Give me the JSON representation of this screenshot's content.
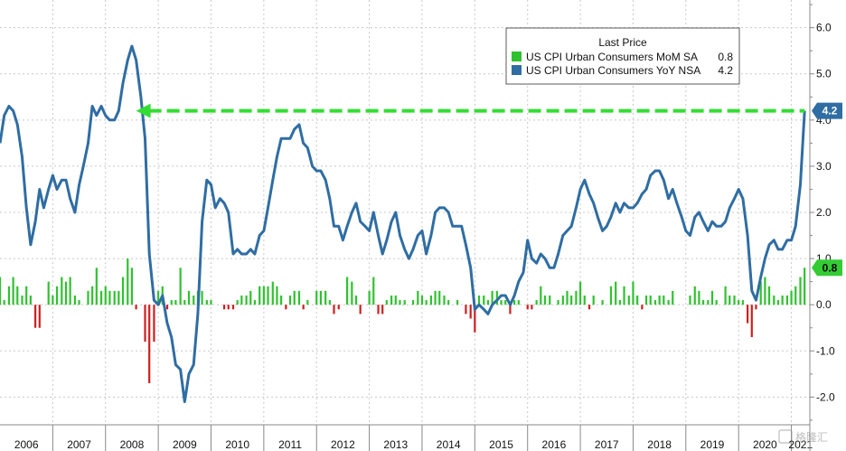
{
  "chart_data": {
    "type": "line+bar",
    "legend": {
      "title": "Last Price",
      "entries": [
        {
          "label": "US CPI Urban Consumers MoM SA",
          "last": "0.8",
          "color": "#2fc12f"
        },
        {
          "label": "US CPI Urban Consumers YoY NSA",
          "last": "4.2",
          "color": "#2f6da3"
        }
      ]
    },
    "x_ticks": [
      "2006",
      "2007",
      "2008",
      "2009",
      "2010",
      "2011",
      "2012",
      "2013",
      "2014",
      "2015",
      "2016",
      "2017",
      "2018",
      "2019",
      "2020",
      "2021"
    ],
    "y_ticks": [
      "6.0",
      "5.0",
      "4.0",
      "3.0",
      "2.0",
      "1.0",
      "0.0",
      "-1.0",
      "-2.0"
    ],
    "ylim": [
      -2.6,
      6.6
    ],
    "xlim": [
      2006.0,
      2021.35
    ],
    "yoy": [
      [
        2006.0,
        3.5
      ],
      [
        2006.08,
        4.1
      ],
      [
        2006.17,
        4.3
      ],
      [
        2006.25,
        4.2
      ],
      [
        2006.33,
        3.9
      ],
      [
        2006.42,
        3.2
      ],
      [
        2006.5,
        2.1
      ],
      [
        2006.58,
        1.3
      ],
      [
        2006.67,
        1.8
      ],
      [
        2006.75,
        2.5
      ],
      [
        2006.83,
        2.1
      ],
      [
        2006.92,
        2.5
      ],
      [
        2007.0,
        2.8
      ],
      [
        2007.08,
        2.5
      ],
      [
        2007.17,
        2.7
      ],
      [
        2007.25,
        2.7
      ],
      [
        2007.33,
        2.3
      ],
      [
        2007.42,
        2.0
      ],
      [
        2007.5,
        2.6
      ],
      [
        2007.58,
        3.0
      ],
      [
        2007.67,
        3.5
      ],
      [
        2007.75,
        4.3
      ],
      [
        2007.83,
        4.1
      ],
      [
        2007.92,
        4.3
      ],
      [
        2008.0,
        4.1
      ],
      [
        2008.08,
        4.0
      ],
      [
        2008.17,
        4.0
      ],
      [
        2008.25,
        4.2
      ],
      [
        2008.33,
        4.8
      ],
      [
        2008.42,
        5.3
      ],
      [
        2008.5,
        5.6
      ],
      [
        2008.58,
        5.3
      ],
      [
        2008.67,
        4.5
      ],
      [
        2008.75,
        3.6
      ],
      [
        2008.83,
        1.1
      ],
      [
        2008.92,
        0.1
      ],
      [
        2009.0,
        0.0
      ],
      [
        2009.08,
        0.2
      ],
      [
        2009.17,
        -0.4
      ],
      [
        2009.25,
        -0.7
      ],
      [
        2009.33,
        -1.3
      ],
      [
        2009.42,
        -1.4
      ],
      [
        2009.5,
        -2.1
      ],
      [
        2009.58,
        -1.5
      ],
      [
        2009.67,
        -1.3
      ],
      [
        2009.75,
        -0.2
      ],
      [
        2009.83,
        1.8
      ],
      [
        2009.92,
        2.7
      ],
      [
        2010.0,
        2.6
      ],
      [
        2010.08,
        2.1
      ],
      [
        2010.17,
        2.3
      ],
      [
        2010.25,
        2.2
      ],
      [
        2010.33,
        2.0
      ],
      [
        2010.42,
        1.1
      ],
      [
        2010.5,
        1.2
      ],
      [
        2010.58,
        1.1
      ],
      [
        2010.67,
        1.1
      ],
      [
        2010.75,
        1.2
      ],
      [
        2010.83,
        1.1
      ],
      [
        2010.92,
        1.5
      ],
      [
        2011.0,
        1.6
      ],
      [
        2011.08,
        2.1
      ],
      [
        2011.17,
        2.7
      ],
      [
        2011.25,
        3.2
      ],
      [
        2011.33,
        3.6
      ],
      [
        2011.42,
        3.6
      ],
      [
        2011.5,
        3.6
      ],
      [
        2011.58,
        3.8
      ],
      [
        2011.67,
        3.9
      ],
      [
        2011.75,
        3.5
      ],
      [
        2011.83,
        3.4
      ],
      [
        2011.92,
        3.0
      ],
      [
        2012.0,
        2.9
      ],
      [
        2012.08,
        2.9
      ],
      [
        2012.17,
        2.7
      ],
      [
        2012.25,
        2.3
      ],
      [
        2012.33,
        1.7
      ],
      [
        2012.42,
        1.7
      ],
      [
        2012.5,
        1.4
      ],
      [
        2012.58,
        1.7
      ],
      [
        2012.67,
        2.0
      ],
      [
        2012.75,
        2.2
      ],
      [
        2012.83,
        1.8
      ],
      [
        2012.92,
        1.7
      ],
      [
        2013.0,
        1.6
      ],
      [
        2013.08,
        2.0
      ],
      [
        2013.17,
        1.5
      ],
      [
        2013.25,
        1.1
      ],
      [
        2013.33,
        1.4
      ],
      [
        2013.42,
        1.8
      ],
      [
        2013.5,
        2.0
      ],
      [
        2013.58,
        1.5
      ],
      [
        2013.67,
        1.2
      ],
      [
        2013.75,
        1.0
      ],
      [
        2013.83,
        1.2
      ],
      [
        2013.92,
        1.5
      ],
      [
        2014.0,
        1.6
      ],
      [
        2014.08,
        1.1
      ],
      [
        2014.17,
        1.5
      ],
      [
        2014.25,
        2.0
      ],
      [
        2014.33,
        2.1
      ],
      [
        2014.42,
        2.1
      ],
      [
        2014.5,
        2.0
      ],
      [
        2014.58,
        1.7
      ],
      [
        2014.67,
        1.7
      ],
      [
        2014.75,
        1.7
      ],
      [
        2014.83,
        1.3
      ],
      [
        2014.92,
        0.8
      ],
      [
        2015.0,
        -0.1
      ],
      [
        2015.08,
        0.0
      ],
      [
        2015.17,
        -0.1
      ],
      [
        2015.25,
        -0.2
      ],
      [
        2015.33,
        0.0
      ],
      [
        2015.42,
        0.1
      ],
      [
        2015.5,
        0.2
      ],
      [
        2015.58,
        0.2
      ],
      [
        2015.67,
        0.0
      ],
      [
        2015.75,
        0.2
      ],
      [
        2015.83,
        0.5
      ],
      [
        2015.92,
        0.7
      ],
      [
        2016.0,
        1.4
      ],
      [
        2016.08,
        1.0
      ],
      [
        2016.17,
        0.9
      ],
      [
        2016.25,
        1.1
      ],
      [
        2016.33,
        1.0
      ],
      [
        2016.42,
        0.8
      ],
      [
        2016.5,
        0.8
      ],
      [
        2016.58,
        1.1
      ],
      [
        2016.67,
        1.5
      ],
      [
        2016.75,
        1.6
      ],
      [
        2016.83,
        1.7
      ],
      [
        2016.92,
        2.1
      ],
      [
        2017.0,
        2.5
      ],
      [
        2017.08,
        2.7
      ],
      [
        2017.17,
        2.4
      ],
      [
        2017.25,
        2.2
      ],
      [
        2017.33,
        1.9
      ],
      [
        2017.42,
        1.6
      ],
      [
        2017.5,
        1.7
      ],
      [
        2017.58,
        1.9
      ],
      [
        2017.67,
        2.2
      ],
      [
        2017.75,
        2.0
      ],
      [
        2017.83,
        2.2
      ],
      [
        2017.92,
        2.1
      ],
      [
        2018.0,
        2.1
      ],
      [
        2018.08,
        2.2
      ],
      [
        2018.17,
        2.4
      ],
      [
        2018.25,
        2.5
      ],
      [
        2018.33,
        2.8
      ],
      [
        2018.42,
        2.9
      ],
      [
        2018.5,
        2.9
      ],
      [
        2018.58,
        2.7
      ],
      [
        2018.67,
        2.3
      ],
      [
        2018.75,
        2.5
      ],
      [
        2018.83,
        2.2
      ],
      [
        2018.92,
        1.9
      ],
      [
        2019.0,
        1.6
      ],
      [
        2019.08,
        1.5
      ],
      [
        2019.17,
        1.9
      ],
      [
        2019.25,
        2.0
      ],
      [
        2019.33,
        1.8
      ],
      [
        2019.42,
        1.6
      ],
      [
        2019.5,
        1.8
      ],
      [
        2019.58,
        1.7
      ],
      [
        2019.67,
        1.7
      ],
      [
        2019.75,
        1.8
      ],
      [
        2019.83,
        2.1
      ],
      [
        2019.92,
        2.3
      ],
      [
        2020.0,
        2.5
      ],
      [
        2020.08,
        2.3
      ],
      [
        2020.17,
        1.5
      ],
      [
        2020.25,
        0.3
      ],
      [
        2020.33,
        0.1
      ],
      [
        2020.42,
        0.6
      ],
      [
        2020.5,
        1.0
      ],
      [
        2020.58,
        1.3
      ],
      [
        2020.67,
        1.4
      ],
      [
        2020.75,
        1.2
      ],
      [
        2020.83,
        1.2
      ],
      [
        2020.92,
        1.4
      ],
      [
        2021.0,
        1.4
      ],
      [
        2021.08,
        1.7
      ],
      [
        2021.17,
        2.6
      ],
      [
        2021.25,
        4.2
      ]
    ],
    "mom": [
      [
        2006.0,
        0.6
      ],
      [
        2006.08,
        0.1
      ],
      [
        2006.17,
        0.4
      ],
      [
        2006.25,
        0.6
      ],
      [
        2006.33,
        0.4
      ],
      [
        2006.42,
        0.2
      ],
      [
        2006.5,
        0.4
      ],
      [
        2006.58,
        0.2
      ],
      [
        2006.67,
        -0.5
      ],
      [
        2006.75,
        -0.5
      ],
      [
        2006.83,
        0.0
      ],
      [
        2006.92,
        0.5
      ],
      [
        2007.0,
        0.2
      ],
      [
        2007.08,
        0.4
      ],
      [
        2007.17,
        0.6
      ],
      [
        2007.25,
        0.5
      ],
      [
        2007.33,
        0.6
      ],
      [
        2007.42,
        0.2
      ],
      [
        2007.5,
        0.1
      ],
      [
        2007.58,
        0.0
      ],
      [
        2007.67,
        0.3
      ],
      [
        2007.75,
        0.4
      ],
      [
        2007.83,
        0.8
      ],
      [
        2007.92,
        0.3
      ],
      [
        2008.0,
        0.4
      ],
      [
        2008.08,
        0.3
      ],
      [
        2008.17,
        0.3
      ],
      [
        2008.25,
        0.3
      ],
      [
        2008.33,
        0.6
      ],
      [
        2008.42,
        1.0
      ],
      [
        2008.5,
        0.8
      ],
      [
        2008.58,
        -0.1
      ],
      [
        2008.67,
        0.0
      ],
      [
        2008.75,
        -0.8
      ],
      [
        2008.83,
        -1.7
      ],
      [
        2008.92,
        -0.8
      ],
      [
        2009.0,
        0.3
      ],
      [
        2009.08,
        0.4
      ],
      [
        2009.17,
        -0.1
      ],
      [
        2009.25,
        0.1
      ],
      [
        2009.33,
        0.1
      ],
      [
        2009.42,
        0.8
      ],
      [
        2009.5,
        0.1
      ],
      [
        2009.58,
        0.3
      ],
      [
        2009.67,
        0.2
      ],
      [
        2009.75,
        0.3
      ],
      [
        2009.83,
        0.3
      ],
      [
        2009.92,
        0.1
      ],
      [
        2010.0,
        0.1
      ],
      [
        2010.08,
        0.0
      ],
      [
        2010.17,
        0.0
      ],
      [
        2010.25,
        -0.1
      ],
      [
        2010.33,
        -0.1
      ],
      [
        2010.42,
        -0.1
      ],
      [
        2010.5,
        0.1
      ],
      [
        2010.58,
        0.2
      ],
      [
        2010.67,
        0.2
      ],
      [
        2010.75,
        0.3
      ],
      [
        2010.83,
        0.1
      ],
      [
        2010.92,
        0.4
      ],
      [
        2011.0,
        0.4
      ],
      [
        2011.08,
        0.4
      ],
      [
        2011.17,
        0.5
      ],
      [
        2011.25,
        0.4
      ],
      [
        2011.33,
        0.2
      ],
      [
        2011.42,
        -0.1
      ],
      [
        2011.5,
        0.2
      ],
      [
        2011.58,
        0.3
      ],
      [
        2011.67,
        0.3
      ],
      [
        2011.75,
        -0.1
      ],
      [
        2011.83,
        0.1
      ],
      [
        2011.92,
        0.0
      ],
      [
        2012.0,
        0.3
      ],
      [
        2012.08,
        0.3
      ],
      [
        2012.17,
        0.3
      ],
      [
        2012.25,
        0.1
      ],
      [
        2012.33,
        -0.2
      ],
      [
        2012.42,
        -0.1
      ],
      [
        2012.5,
        0.0
      ],
      [
        2012.58,
        0.6
      ],
      [
        2012.67,
        0.5
      ],
      [
        2012.75,
        0.2
      ],
      [
        2012.83,
        -0.2
      ],
      [
        2012.92,
        0.0
      ],
      [
        2013.0,
        0.3
      ],
      [
        2013.08,
        0.6
      ],
      [
        2013.17,
        -0.2
      ],
      [
        2013.25,
        -0.2
      ],
      [
        2013.33,
        0.1
      ],
      [
        2013.42,
        0.2
      ],
      [
        2013.5,
        0.2
      ],
      [
        2013.58,
        0.1
      ],
      [
        2013.67,
        0.1
      ],
      [
        2013.75,
        0.0
      ],
      [
        2013.83,
        0.1
      ],
      [
        2013.92,
        0.3
      ],
      [
        2014.0,
        0.2
      ],
      [
        2014.08,
        0.1
      ],
      [
        2014.17,
        0.2
      ],
      [
        2014.25,
        0.3
      ],
      [
        2014.33,
        0.3
      ],
      [
        2014.42,
        0.2
      ],
      [
        2014.5,
        0.1
      ],
      [
        2014.58,
        0.0
      ],
      [
        2014.67,
        0.1
      ],
      [
        2014.75,
        0.0
      ],
      [
        2014.83,
        -0.2
      ],
      [
        2014.92,
        -0.3
      ],
      [
        2015.0,
        -0.6
      ],
      [
        2015.08,
        0.2
      ],
      [
        2015.17,
        0.2
      ],
      [
        2015.25,
        0.1
      ],
      [
        2015.33,
        0.3
      ],
      [
        2015.42,
        0.3
      ],
      [
        2015.5,
        0.1
      ],
      [
        2015.58,
        0.1
      ],
      [
        2015.67,
        -0.2
      ],
      [
        2015.75,
        0.1
      ],
      [
        2015.83,
        0.1
      ],
      [
        2015.92,
        0.0
      ],
      [
        2016.0,
        -0.1
      ],
      [
        2016.08,
        -0.1
      ],
      [
        2016.17,
        0.1
      ],
      [
        2016.25,
        0.4
      ],
      [
        2016.33,
        0.2
      ],
      [
        2016.42,
        0.2
      ],
      [
        2016.5,
        0.0
      ],
      [
        2016.58,
        0.1
      ],
      [
        2016.67,
        0.2
      ],
      [
        2016.75,
        0.3
      ],
      [
        2016.83,
        0.2
      ],
      [
        2016.92,
        0.3
      ],
      [
        2017.0,
        0.5
      ],
      [
        2017.08,
        0.2
      ],
      [
        2017.17,
        -0.1
      ],
      [
        2017.25,
        0.2
      ],
      [
        2017.33,
        0.0
      ],
      [
        2017.42,
        0.1
      ],
      [
        2017.5,
        0.0
      ],
      [
        2017.58,
        0.4
      ],
      [
        2017.67,
        0.5
      ],
      [
        2017.75,
        0.1
      ],
      [
        2017.83,
        0.4
      ],
      [
        2017.92,
        0.2
      ],
      [
        2018.0,
        0.5
      ],
      [
        2018.08,
        0.2
      ],
      [
        2018.17,
        -0.1
      ],
      [
        2018.25,
        0.2
      ],
      [
        2018.33,
        0.2
      ],
      [
        2018.42,
        0.1
      ],
      [
        2018.5,
        0.2
      ],
      [
        2018.58,
        0.2
      ],
      [
        2018.67,
        0.1
      ],
      [
        2018.75,
        0.3
      ],
      [
        2018.83,
        0.0
      ],
      [
        2018.92,
        0.0
      ],
      [
        2019.0,
        0.0
      ],
      [
        2019.08,
        0.2
      ],
      [
        2019.17,
        0.4
      ],
      [
        2019.25,
        0.3
      ],
      [
        2019.33,
        0.1
      ],
      [
        2019.42,
        0.1
      ],
      [
        2019.5,
        0.3
      ],
      [
        2019.58,
        0.1
      ],
      [
        2019.67,
        0.0
      ],
      [
        2019.75,
        0.4
      ],
      [
        2019.83,
        0.2
      ],
      [
        2019.92,
        0.2
      ],
      [
        2020.0,
        0.1
      ],
      [
        2020.08,
        0.1
      ],
      [
        2020.17,
        -0.4
      ],
      [
        2020.25,
        -0.7
      ],
      [
        2020.33,
        -0.1
      ],
      [
        2020.42,
        0.5
      ],
      [
        2020.5,
        0.6
      ],
      [
        2020.58,
        0.4
      ],
      [
        2020.67,
        0.2
      ],
      [
        2020.75,
        0.1
      ],
      [
        2020.83,
        0.2
      ],
      [
        2020.92,
        0.2
      ],
      [
        2021.0,
        0.3
      ],
      [
        2021.08,
        0.4
      ],
      [
        2021.17,
        0.6
      ],
      [
        2021.25,
        0.8
      ]
    ],
    "reference_line": {
      "from_x": 2008.58,
      "to_x": 2021.25,
      "y": 4.2,
      "color": "#33dd33"
    },
    "last_labels": [
      {
        "text": "4.2",
        "value": 4.2,
        "bg": "#2f6da3",
        "fg": "#ffffff"
      },
      {
        "text": "0.8",
        "value": 0.8,
        "bg": "#33cc33",
        "fg": "#000000"
      }
    ],
    "colors": {
      "yoy": "#2f6da3",
      "mom_pos": "#2fc12f",
      "mom_neg": "#cc1f1f",
      "grid": "#c8c8c8"
    },
    "grid": true,
    "legend_placement": "top-right"
  },
  "watermark": "格隆汇"
}
